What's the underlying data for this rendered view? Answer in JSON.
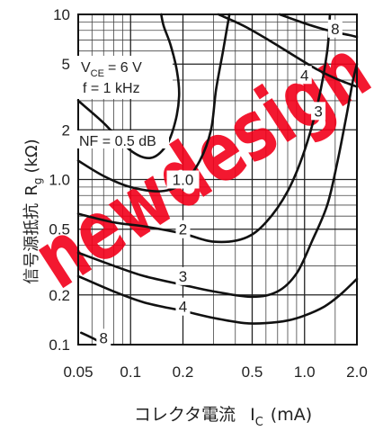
{
  "chart_data": {
    "type": "line",
    "subtype": "contour",
    "xlabel": "コレクタ電流",
    "xlabel_symbol": "I",
    "xlabel_sub": "C",
    "xlabel_unit": "(mA)",
    "ylabel": "信号源抵抗",
    "ylabel_symbol": "R",
    "ylabel_sub": "g",
    "ylabel_unit": "(kΩ)",
    "x_scale": "log",
    "y_scale": "log",
    "xlim": [
      0.05,
      2.0
    ],
    "ylim": [
      0.1,
      10
    ],
    "x_ticks": [
      "0.05",
      "0.1",
      "0.2",
      "0.5",
      "1.0",
      "2.0"
    ],
    "y_ticks": [
      "10",
      "5",
      "2",
      "1.0",
      "0.5",
      "0.2",
      "0.1"
    ],
    "grid": true,
    "conditions": {
      "vce_prefix": "V",
      "vce_sub": "CE",
      "vce_value": "= 6 V",
      "freq": "f = 1 kHz"
    },
    "nf_label": "NF = 0.5 dB",
    "watermark": "newdesign",
    "series": [
      {
        "label": "",
        "points": [
          [
            0.05,
            3.0
          ],
          [
            0.07,
            2.2
          ],
          [
            0.1,
            1.5
          ],
          [
            0.13,
            1.35
          ],
          [
            0.16,
            1.6
          ],
          [
            0.18,
            2.2
          ],
          [
            0.19,
            3.2
          ],
          [
            0.185,
            4.5
          ],
          [
            0.17,
            6.5
          ],
          [
            0.155,
            8.5
          ],
          [
            0.15,
            10
          ]
        ]
      },
      {
        "label": "1.0",
        "points": [
          [
            0.05,
            1.3
          ],
          [
            0.07,
            1.05
          ],
          [
            0.1,
            0.9
          ],
          [
            0.15,
            0.85
          ],
          [
            0.2,
            0.95
          ],
          [
            0.25,
            1.3
          ],
          [
            0.29,
            2.0
          ],
          [
            0.31,
            3.5
          ],
          [
            0.34,
            6.0
          ],
          [
            0.36,
            8.5
          ],
          [
            0.37,
            10
          ]
        ]
      },
      {
        "label": "2",
        "points": [
          [
            0.05,
            0.62
          ],
          [
            0.08,
            0.55
          ],
          [
            0.12,
            0.52
          ],
          [
            0.2,
            0.47
          ],
          [
            0.3,
            0.42
          ],
          [
            0.45,
            0.44
          ],
          [
            0.6,
            0.55
          ],
          [
            0.8,
            0.85
          ],
          [
            1.0,
            1.5
          ],
          [
            1.2,
            3.0
          ],
          [
            1.35,
            6.0
          ],
          [
            1.4,
            10
          ]
        ]
      },
      {
        "label": "3",
        "points": [
          [
            0.05,
            0.36
          ],
          [
            0.08,
            0.3
          ],
          [
            0.12,
            0.26
          ],
          [
            0.2,
            0.23
          ],
          [
            0.3,
            0.21
          ],
          [
            0.5,
            0.195
          ],
          [
            0.7,
            0.21
          ],
          [
            0.9,
            0.27
          ],
          [
            1.1,
            0.42
          ],
          [
            1.35,
            0.7
          ],
          [
            1.55,
            1.3
          ],
          [
            1.75,
            2.5
          ],
          [
            1.9,
            4.0
          ],
          [
            2.0,
            5.0
          ]
        ]
      },
      {
        "label": "4",
        "points": [
          [
            0.05,
            0.26
          ],
          [
            0.08,
            0.21
          ],
          [
            0.12,
            0.18
          ],
          [
            0.2,
            0.16
          ],
          [
            0.3,
            0.145
          ],
          [
            0.45,
            0.135
          ],
          [
            0.6,
            0.135
          ],
          [
            0.8,
            0.14
          ],
          [
            1.0,
            0.15
          ],
          [
            1.3,
            0.17
          ],
          [
            1.6,
            0.2
          ],
          [
            2.0,
            0.25
          ]
        ]
      },
      {
        "label": "4",
        "points": [
          [
            0.32,
            10
          ],
          [
            0.45,
            8.5
          ],
          [
            0.65,
            6.8
          ],
          [
            0.9,
            5.5
          ],
          [
            1.2,
            4.6
          ],
          [
            1.5,
            4.1
          ],
          [
            1.8,
            3.8
          ],
          [
            2.0,
            3.65
          ]
        ]
      },
      {
        "label": "8",
        "points": [
          [
            0.052,
            0.118
          ],
          [
            0.06,
            0.11
          ],
          [
            0.065,
            0.105
          ],
          [
            0.07,
            0.1
          ]
        ]
      },
      {
        "label": "8",
        "points": [
          [
            0.72,
            10
          ],
          [
            0.95,
            9.0
          ],
          [
            1.2,
            8.3
          ],
          [
            1.5,
            7.8
          ],
          [
            1.8,
            7.5
          ],
          [
            2.0,
            7.3
          ]
        ]
      }
    ]
  }
}
